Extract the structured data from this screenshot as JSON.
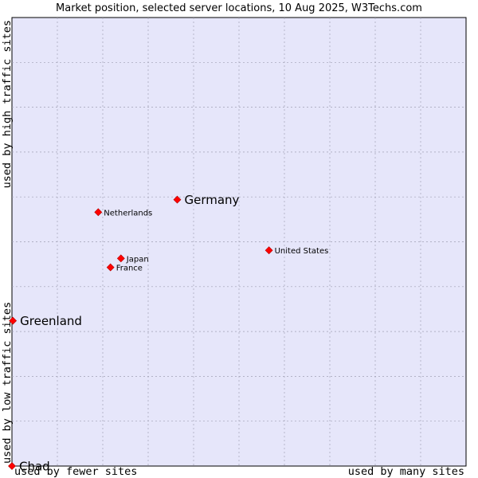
{
  "chart_data": {
    "type": "scatter",
    "title": "Market position, selected server locations, 10 Aug 2025, W3Techs.com",
    "xlabel_left": "used by fewer sites",
    "xlabel_right": "used by many sites",
    "ylabel_bottom": "used by low traffic sites",
    "ylabel_top": "used by high traffic sites",
    "xlim": [
      0,
      100
    ],
    "ylim": [
      0,
      100
    ],
    "grid": true,
    "points": [
      {
        "name": "Germany",
        "x": 36.4,
        "y": 59.4,
        "emphasis": true
      },
      {
        "name": "Netherlands",
        "x": 19.0,
        "y": 56.6,
        "emphasis": false
      },
      {
        "name": "United States",
        "x": 56.6,
        "y": 48.1,
        "emphasis": false
      },
      {
        "name": "Japan",
        "x": 24.0,
        "y": 46.3,
        "emphasis": false
      },
      {
        "name": "France",
        "x": 21.7,
        "y": 44.3,
        "emphasis": false
      },
      {
        "name": "Greenland",
        "x": 0.2,
        "y": 32.4,
        "emphasis": true
      },
      {
        "name": "Chad",
        "x": 0.0,
        "y": 0.0,
        "emphasis": true
      }
    ]
  },
  "colors": {
    "plot_bg": "#e6e6fa",
    "point": "#ff0000",
    "grid": "#a0a0b4",
    "border": "#000000"
  }
}
